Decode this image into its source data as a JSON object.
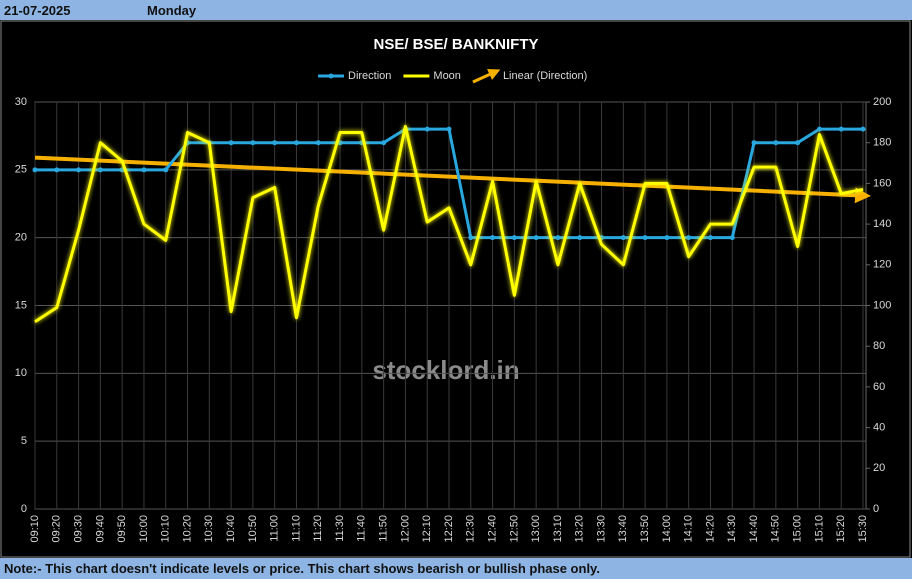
{
  "header": {
    "date": "21-07-2025",
    "day": "Monday"
  },
  "note": "Note:- This chart doesn't indicate levels or price. This chart shows bearish or bullish phase only.",
  "chart_data": {
    "type": "line",
    "title": "NSE/ BSE/ BANKNIFTY",
    "watermark": "stocklord.in",
    "categories": [
      "09:10",
      "09:20",
      "09:30",
      "09:40",
      "09:50",
      "10:00",
      "10:10",
      "10:20",
      "10:30",
      "10:40",
      "10:50",
      "11:00",
      "11:10",
      "11:20",
      "11:30",
      "11:40",
      "11:50",
      "12:00",
      "12:10",
      "12:20",
      "12:30",
      "12:40",
      "12:50",
      "13:00",
      "13:10",
      "13:20",
      "13:30",
      "13:40",
      "13:50",
      "14:00",
      "14:10",
      "14:20",
      "14:30",
      "14:40",
      "14:50",
      "15:00",
      "15:10",
      "15:20",
      "15:30"
    ],
    "series": [
      {
        "name": "Direction",
        "color": "#29a8e0",
        "axis": "y",
        "markers": true,
        "values": [
          25,
          25,
          25,
          25,
          25,
          25,
          25,
          27,
          27,
          27,
          27,
          27,
          27,
          27,
          27,
          27,
          27,
          28,
          28,
          28,
          20,
          20,
          20,
          20,
          20,
          20,
          20,
          20,
          20,
          20,
          20,
          20,
          20,
          27,
          27,
          27,
          28,
          28,
          28
        ]
      },
      {
        "name": "Moon",
        "color": "#ffff00",
        "axis": "y2",
        "markers": false,
        "values": [
          92,
          99,
          137,
          180,
          171,
          140,
          132,
          185,
          180,
          97,
          153,
          158,
          94,
          149,
          185,
          185,
          137,
          188,
          141,
          148,
          120,
          161,
          105,
          161,
          120,
          160,
          130,
          120,
          160,
          160,
          124,
          140,
          140,
          168,
          168,
          129,
          184,
          155,
          157
        ]
      }
    ],
    "trendline": {
      "name": "Linear (Direction)",
      "color": "#f5b000",
      "start": 25.9,
      "end": 23.1
    },
    "ylim": [
      0,
      30
    ],
    "yticks": [
      0,
      5,
      10,
      15,
      20,
      25,
      30
    ],
    "y2lim": [
      0,
      200
    ],
    "y2ticks": [
      0,
      20,
      40,
      60,
      80,
      100,
      120,
      140,
      160,
      180,
      200
    ],
    "grid": true
  }
}
